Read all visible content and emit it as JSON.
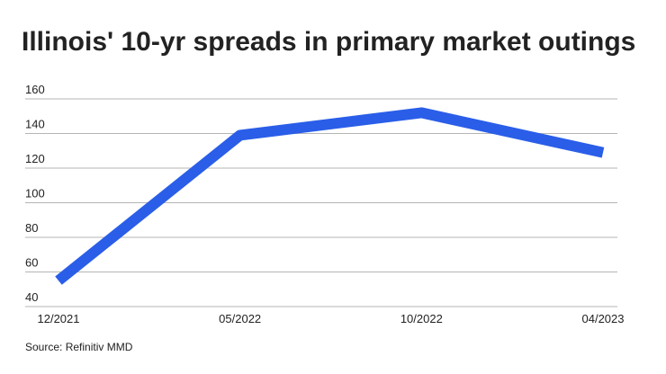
{
  "chart_data": {
    "type": "line",
    "title": "Illinois' 10-yr spreads in primary market outings",
    "categories": [
      "12/2021",
      "05/2022",
      "10/2022",
      "04/2023"
    ],
    "series": [
      {
        "name": "Illinois 10-yr spread",
        "color": "#2a5ee8",
        "values": [
          55,
          139,
          152,
          129
        ]
      }
    ],
    "ylim": [
      40,
      160
    ],
    "yticks": [
      40,
      60,
      80,
      100,
      120,
      140,
      160
    ],
    "grid": true,
    "source": "Source: Refinitiv MMD"
  }
}
